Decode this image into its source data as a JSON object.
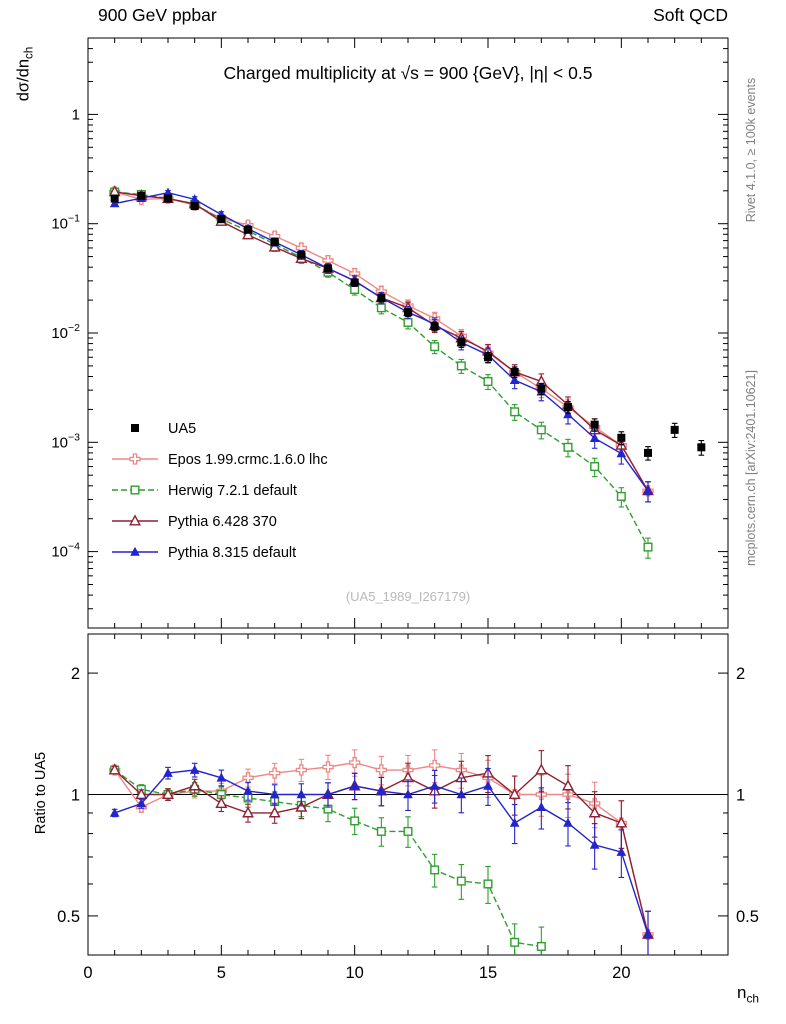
{
  "header": {
    "left": "900 GeV ppbar",
    "right": "Soft QCD"
  },
  "side_notes": {
    "top_right": "Rivet 4.1.0, ≥ 100k events",
    "bottom_right": "mcplots.cern.ch [arXiv:2401.10621]"
  },
  "watermark": "(UA5_1989_I267179)",
  "chart_data": {
    "type": "line",
    "title": "Charged multiplicity at √s = 900 {GeV}, |η| < 0.5",
    "xlabel": "n",
    "xlabel_sub": "ch",
    "ylabel": "dσ/dn",
    "ylabel_sub": "ch",
    "ratio_ylabel": "Ratio to UA5",
    "x_range": [
      0,
      24
    ],
    "y_scale": "log",
    "y_range": [
      2e-05,
      5
    ],
    "ratio_scale": "log",
    "ratio_range": [
      0.4,
      2.5
    ],
    "grid": false,
    "legend_position": "left-middle",
    "x_ticks": [
      {
        "value": 0,
        "text": "0"
      },
      {
        "value": 5,
        "text": "5"
      },
      {
        "value": 10,
        "text": "10"
      },
      {
        "value": 15,
        "text": "15"
      },
      {
        "value": 20,
        "text": "20"
      }
    ],
    "y_tick_labels": [
      {
        "value": 1,
        "text": "1"
      },
      {
        "value": 0.1,
        "text": "10",
        "sup": "−1"
      },
      {
        "value": 0.01,
        "text": "10",
        "sup": "−2"
      },
      {
        "value": 0.001,
        "text": "10",
        "sup": "−3"
      },
      {
        "value": 0.0001,
        "text": "10",
        "sup": "−4"
      }
    ],
    "ratio_ticks": [
      {
        "value": 0.5,
        "text": "0.5"
      },
      {
        "value": 1,
        "text": "1"
      },
      {
        "value": 2,
        "text": "2"
      }
    ],
    "ratio_minor_ticks": [
      0.4,
      0.6,
      0.7,
      0.8,
      0.9
    ],
    "series": [
      {
        "name": "UA5",
        "role": "data",
        "color": "#000000",
        "marker": "filled-square",
        "line": "none",
        "x": [
          1,
          2,
          3,
          4,
          5,
          6,
          7,
          8,
          9,
          10,
          11,
          12,
          13,
          14,
          15,
          16,
          17,
          18,
          19,
          20,
          21,
          22,
          23
        ],
        "y": [
          0.17,
          0.18,
          0.17,
          0.145,
          0.11,
          0.088,
          0.068,
          0.052,
          0.039,
          0.029,
          0.021,
          0.0155,
          0.0115,
          0.0082,
          0.006,
          0.0044,
          0.0031,
          0.0021,
          0.00145,
          0.0011,
          0.0008,
          0.0013,
          0.0009
        ]
      },
      {
        "name": "Epos 1.99.crmc.1.6.0 lhc",
        "role": "mc",
        "color": "#ee8884",
        "marker": "open-cross",
        "line": "solid",
        "x": [
          1,
          2,
          3,
          4,
          5,
          6,
          7,
          8,
          9,
          10,
          11,
          12,
          13,
          14,
          15,
          16,
          17,
          18,
          19,
          20,
          21
        ],
        "y": [
          0.195,
          0.167,
          0.17,
          0.148,
          0.112,
          0.097,
          0.077,
          0.06,
          0.046,
          0.035,
          0.024,
          0.0178,
          0.0136,
          0.0094,
          0.0066,
          0.0044,
          0.0031,
          0.0021,
          0.00138,
          0.00094,
          0.00036
        ],
        "ratio_x": [
          1,
          2,
          3,
          4,
          5,
          6,
          7,
          8,
          9,
          10,
          11,
          12,
          13,
          14,
          15,
          16,
          17,
          18,
          19,
          20,
          21
        ],
        "ratio": [
          1.15,
          0.93,
          1.0,
          1.02,
          1.02,
          1.1,
          1.13,
          1.15,
          1.17,
          1.2,
          1.15,
          1.15,
          1.18,
          1.15,
          1.1,
          1.0,
          1.0,
          1.0,
          0.95,
          0.85,
          0.45
        ]
      },
      {
        "name": "Herwig 7.2.1 default",
        "role": "mc",
        "color": "#2f9e2f",
        "marker": "open-square",
        "line": "dashed",
        "x": [
          1,
          2,
          3,
          4,
          5,
          6,
          7,
          8,
          9,
          10,
          11,
          12,
          13,
          14,
          15,
          16,
          17,
          18,
          19,
          20,
          21
        ],
        "y": [
          0.195,
          0.185,
          0.17,
          0.15,
          0.11,
          0.086,
          0.065,
          0.049,
          0.036,
          0.025,
          0.017,
          0.0125,
          0.0075,
          0.005,
          0.0036,
          0.0019,
          0.0013,
          0.0009,
          0.0006,
          0.00032,
          0.00011
        ],
        "ratio_x": [
          1,
          2,
          3,
          4,
          5,
          6,
          7,
          8,
          9,
          10,
          11,
          12,
          13,
          14,
          15,
          16,
          17
        ],
        "ratio": [
          1.15,
          1.03,
          1.0,
          1.03,
          1.0,
          0.98,
          0.96,
          0.94,
          0.92,
          0.86,
          0.81,
          0.81,
          0.65,
          0.61,
          0.6,
          0.43,
          0.42
        ]
      },
      {
        "name": "Pythia 6.428 370",
        "role": "mc",
        "color": "#8f1f33",
        "marker": "open-triangle",
        "line": "solid",
        "x": [
          1,
          2,
          3,
          4,
          5,
          6,
          7,
          8,
          9,
          10,
          11,
          12,
          13,
          14,
          15,
          16,
          17,
          18,
          19,
          20,
          21
        ],
        "y": [
          0.196,
          0.18,
          0.17,
          0.152,
          0.105,
          0.079,
          0.061,
          0.048,
          0.039,
          0.03,
          0.021,
          0.017,
          0.0117,
          0.009,
          0.0068,
          0.0044,
          0.0036,
          0.0022,
          0.0013,
          0.00094,
          0.00036
        ],
        "ratio_x": [
          1,
          2,
          3,
          4,
          5,
          6,
          7,
          8,
          9,
          10,
          11,
          12,
          13,
          14,
          15,
          16,
          17,
          18,
          19,
          20,
          21
        ],
        "ratio": [
          1.15,
          1.0,
          1.0,
          1.05,
          0.95,
          0.9,
          0.9,
          0.93,
          1.0,
          1.05,
          1.02,
          1.1,
          1.02,
          1.1,
          1.13,
          1.0,
          1.15,
          1.05,
          0.9,
          0.85,
          0.45
        ]
      },
      {
        "name": "Pythia 8.315 default",
        "role": "mc",
        "color": "#2424cc",
        "marker": "filled-triangle",
        "line": "solid",
        "x": [
          1,
          2,
          3,
          4,
          5,
          6,
          7,
          8,
          9,
          10,
          11,
          12,
          13,
          14,
          15,
          16,
          17,
          18,
          19,
          20,
          21
        ],
        "y": [
          0.153,
          0.171,
          0.192,
          0.167,
          0.121,
          0.09,
          0.068,
          0.052,
          0.039,
          0.03,
          0.021,
          0.0155,
          0.0121,
          0.0082,
          0.0063,
          0.0037,
          0.0029,
          0.0018,
          0.00109,
          0.00079,
          0.00036
        ],
        "ratio_x": [
          1,
          2,
          3,
          4,
          5,
          6,
          7,
          8,
          9,
          10,
          11,
          12,
          13,
          14,
          15,
          16,
          17,
          18,
          19,
          20,
          21
        ],
        "ratio": [
          0.9,
          0.95,
          1.13,
          1.15,
          1.1,
          1.02,
          1.0,
          1.0,
          1.0,
          1.05,
          1.02,
          1.0,
          1.05,
          1.0,
          1.05,
          0.85,
          0.93,
          0.85,
          0.75,
          0.72,
          0.45
        ]
      }
    ]
  }
}
